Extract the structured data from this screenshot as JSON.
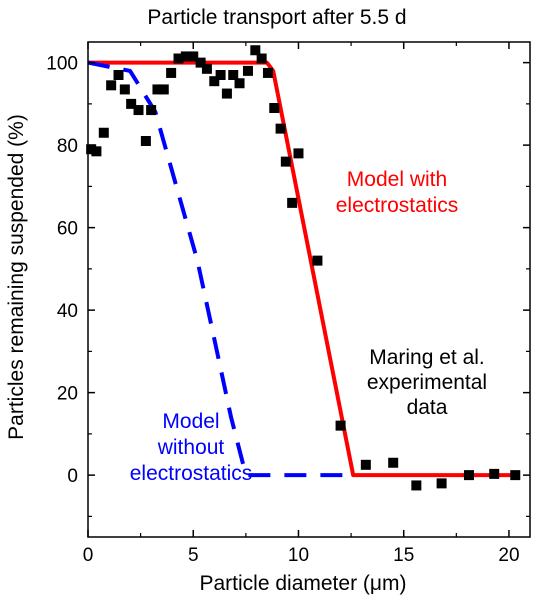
{
  "chart_data": {
    "type": "scatter",
    "title": "Particle transport after 5.5 d",
    "xlabel": "Particle diameter (μm)",
    "ylabel": "Particles remaining suspended (%)",
    "xlim": [
      0,
      21
    ],
    "ylim": [
      -15,
      105
    ],
    "xticks": [
      0,
      5,
      10,
      15,
      20
    ],
    "yticks": [
      0,
      20,
      40,
      60,
      80,
      100
    ],
    "grid": false,
    "series": [
      {
        "name": "",
        "kind": "scatter",
        "color": "#000000",
        "points": [
          [
            0.15,
            79
          ],
          [
            0.4,
            78.5
          ],
          [
            0.75,
            83
          ],
          [
            1.1,
            94.5
          ],
          [
            1.45,
            97
          ],
          [
            1.75,
            93.5
          ],
          [
            2.05,
            90
          ],
          [
            2.4,
            88.5
          ],
          [
            2.75,
            81
          ],
          [
            3.0,
            88.5
          ],
          [
            3.3,
            93.5
          ],
          [
            3.6,
            93.5
          ],
          [
            3.95,
            97.5
          ],
          [
            4.3,
            101
          ],
          [
            4.65,
            101.5
          ],
          [
            5.0,
            101.5
          ],
          [
            5.35,
            100
          ],
          [
            5.65,
            98.5
          ],
          [
            6.0,
            95.5
          ],
          [
            6.3,
            97
          ],
          [
            6.6,
            92.5
          ],
          [
            6.9,
            97
          ],
          [
            7.2,
            95
          ],
          [
            7.6,
            98
          ],
          [
            7.95,
            103
          ],
          [
            8.25,
            101
          ],
          [
            8.55,
            97.5
          ],
          [
            8.85,
            89
          ],
          [
            9.15,
            84
          ],
          [
            9.4,
            76
          ],
          [
            9.7,
            66
          ],
          [
            10.0,
            78
          ],
          [
            10.9,
            52
          ],
          [
            12.0,
            12
          ],
          [
            13.2,
            2.5
          ],
          [
            14.5,
            3
          ],
          [
            15.6,
            -2.5
          ],
          [
            16.8,
            -2
          ],
          [
            18.1,
            0
          ],
          [
            19.3,
            0.3
          ],
          [
            20.3,
            0
          ]
        ]
      },
      {
        "name": "",
        "kind": "line",
        "color": "#ff0000",
        "dashed": false,
        "points": [
          [
            0,
            100
          ],
          [
            8.5,
            100
          ],
          [
            8.8,
            98
          ],
          [
            12.6,
            0
          ],
          [
            20.5,
            0
          ]
        ]
      },
      {
        "name": "",
        "kind": "line",
        "color": "#0000ff",
        "dashed": true,
        "points": [
          [
            0,
            100
          ],
          [
            2.0,
            98
          ],
          [
            3.2,
            88
          ],
          [
            4.2,
            70
          ],
          [
            5.2,
            52
          ],
          [
            6.0,
            33
          ],
          [
            6.8,
            14
          ],
          [
            7.5,
            0
          ],
          [
            8.7,
            0
          ],
          [
            12.6,
            0
          ]
        ]
      }
    ],
    "annotations": [
      {
        "lines": [
          "Model with",
          "electrostatics"
        ],
        "color": "#ff0000"
      },
      {
        "lines": [
          "Maring et al.",
          "experimental",
          "data"
        ],
        "color": "#000000"
      },
      {
        "lines": [
          "Model",
          "without",
          "electrostatics"
        ],
        "color": "#0000ff"
      }
    ]
  }
}
